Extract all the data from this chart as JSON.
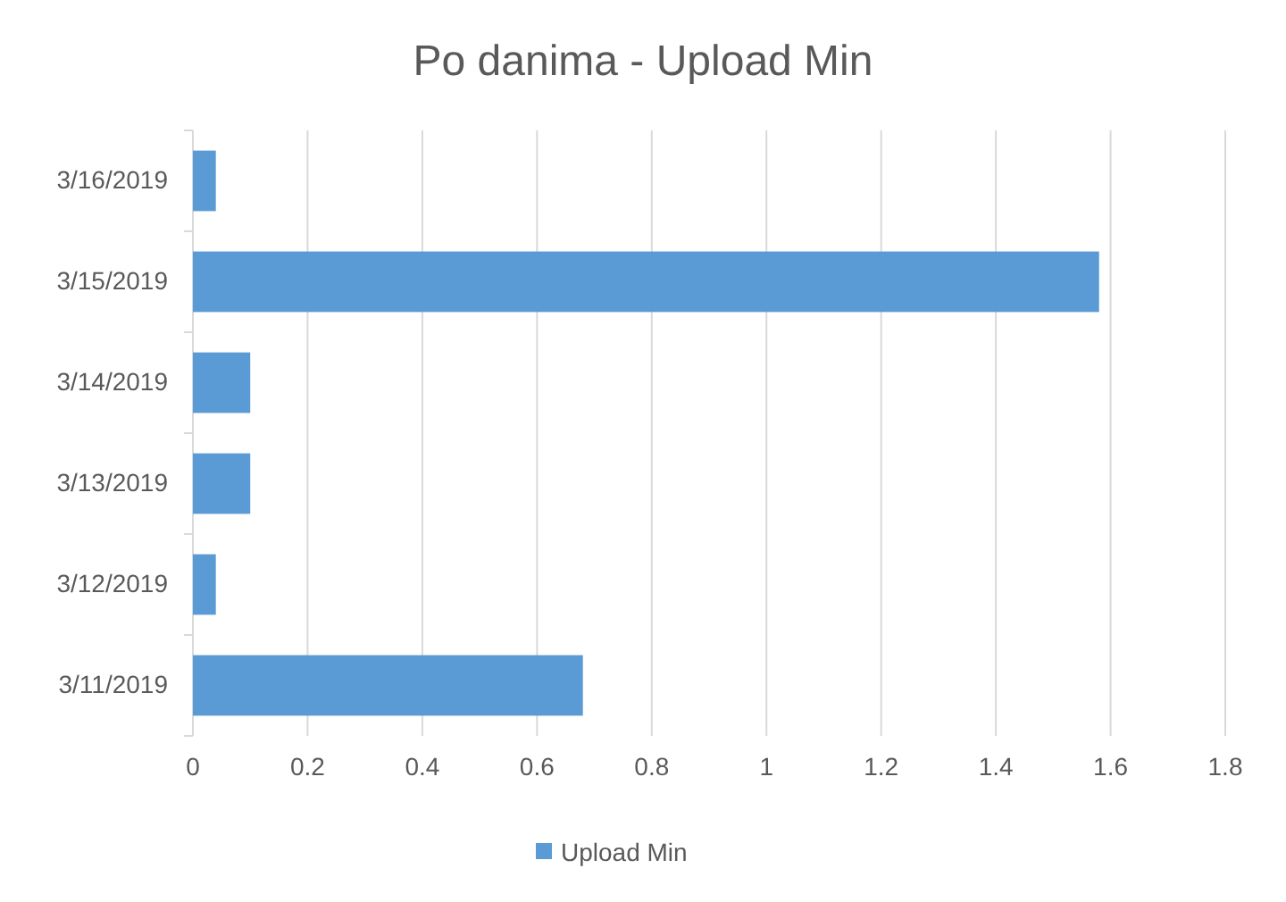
{
  "chart_data": {
    "type": "bar",
    "orientation": "horizontal",
    "title": "Po danima - Upload Min",
    "categories": [
      "3/16/2019",
      "3/15/2019",
      "3/14/2019",
      "3/13/2019",
      "3/12/2019",
      "3/11/2019"
    ],
    "series": [
      {
        "name": "Upload Min",
        "color": "#5b9bd5",
        "values": [
          0.04,
          1.58,
          0.1,
          0.1,
          0.04,
          0.68
        ]
      }
    ],
    "xlim": [
      0,
      1.8
    ],
    "xticks": [
      0,
      0.2,
      0.4,
      0.6,
      0.8,
      1,
      1.2,
      1.4,
      1.6,
      1.8
    ],
    "grid": "x",
    "legend": "bottom"
  }
}
